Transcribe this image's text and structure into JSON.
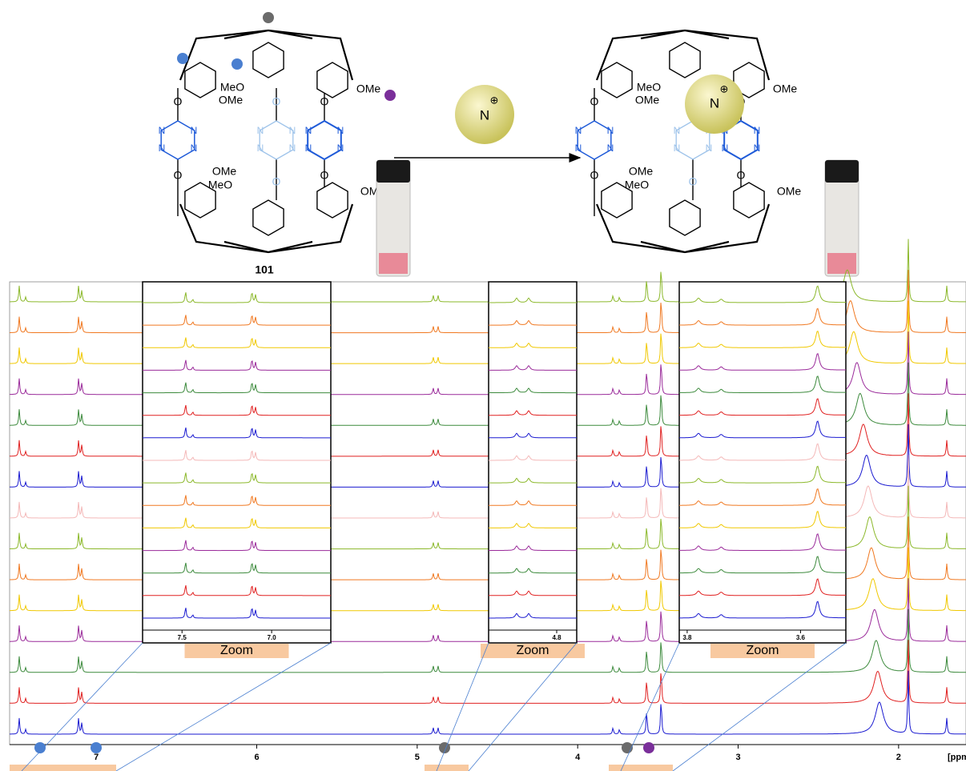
{
  "compound_label": "101",
  "zoom_labels": [
    "Zoom",
    "Zoom",
    "Zoom"
  ],
  "structure_labels": {
    "ome": "OMe",
    "meo": "MeO",
    "o": "O",
    "n": "N",
    "plus": "⊕"
  },
  "axis": {
    "unit": "[ppm]",
    "xlim": [
      7.54,
      1.58
    ],
    "xticks": [
      7,
      6,
      5,
      4,
      3,
      2
    ]
  },
  "zooms": [
    {
      "xlim": [
        7.72,
        6.67
      ],
      "xticks": [
        7.5,
        {
          "value": 7,
          "label": "7.0"
        }
      ]
    },
    {
      "xlim": [
        4.97,
        4.75
      ],
      "xticks": [
        4.8
      ]
    },
    {
      "xlim": [
        3.814,
        3.52
      ],
      "xticks": [
        3.8,
        3.6
      ]
    }
  ],
  "peaks": [
    {
      "ppm": 7.48,
      "height": 20
    },
    {
      "ppm": 7.44,
      "height": 6
    },
    {
      "ppm": 7.11,
      "height": 20
    },
    {
      "ppm": 7.09,
      "height": 14
    },
    {
      "ppm": 4.9,
      "height": 8
    },
    {
      "ppm": 4.87,
      "height": 8
    },
    {
      "ppm": 3.78,
      "height": 8
    },
    {
      "ppm": 3.74,
      "height": 6
    },
    {
      "ppm": 3.57,
      "height": 30
    },
    {
      "ppm": 3.48,
      "height": 45
    },
    {
      "ppm": 1.94,
      "height": 80
    },
    {
      "ppm": 1.7,
      "height": 20
    }
  ],
  "spectra": [
    {
      "color": "#8bb82a",
      "water_ppm": 2.32
    },
    {
      "color": "#f07820",
      "water_ppm": 2.3
    },
    {
      "color": "#f0c800",
      "water_ppm": 2.28
    },
    {
      "color": "#9a2a9a",
      "water_ppm": 2.26
    },
    {
      "color": "#3c8a3c",
      "water_ppm": 2.24
    },
    {
      "color": "#e02020",
      "water_ppm": 2.22
    },
    {
      "color": "#1a1ad0",
      "water_ppm": 2.2
    },
    {
      "color": "#f4b8b8",
      "water_ppm": 2.19
    },
    {
      "color": "#8bb82a",
      "water_ppm": 2.18
    },
    {
      "color": "#f07820",
      "water_ppm": 2.17
    },
    {
      "color": "#f0c800",
      "water_ppm": 2.16
    },
    {
      "color": "#9a2a9a",
      "water_ppm": 2.15
    },
    {
      "color": "#3c8a3c",
      "water_ppm": 2.14
    },
    {
      "color": "#e02020",
      "water_ppm": 2.13
    },
    {
      "color": "#1a1ad0",
      "water_ppm": 2.12
    }
  ]
}
